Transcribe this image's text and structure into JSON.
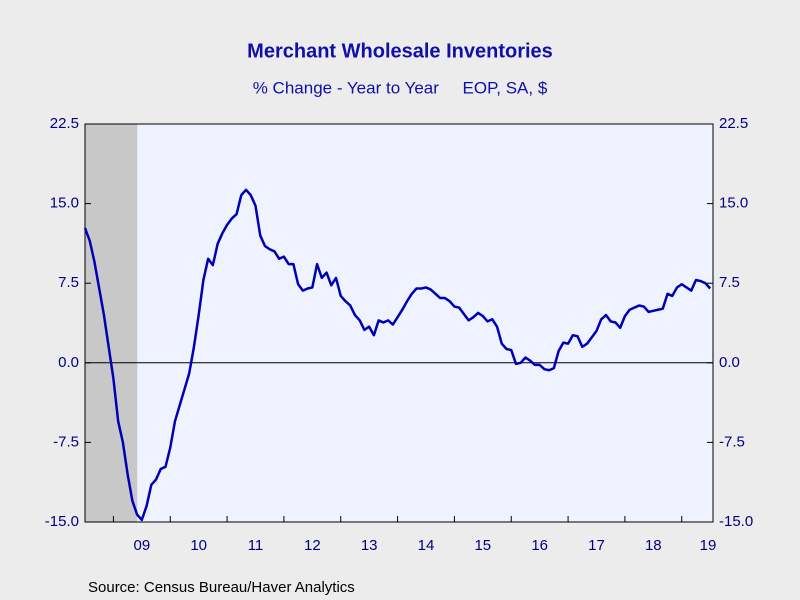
{
  "chart_data": {
    "type": "line",
    "title": "Merchant Wholesale Inventories",
    "subtitle": "% Change - Year to Year     EOP, SA, $",
    "source": "Source:  Census Bureau/Haver Analytics",
    "x": [
      2008.5,
      2008.5833,
      2008.6667,
      2008.75,
      2008.8333,
      2008.9167,
      2009,
      2009.0833,
      2009.1667,
      2009.25,
      2009.3333,
      2009.4167,
      2009.5,
      2009.5833,
      2009.6667,
      2009.75,
      2009.8333,
      2009.9167,
      2010,
      2010.0833,
      2010.1667,
      2010.25,
      2010.3333,
      2010.4167,
      2010.5,
      2010.5833,
      2010.6667,
      2010.75,
      2010.8333,
      2010.9167,
      2011,
      2011.0833,
      2011.1667,
      2011.25,
      2011.3333,
      2011.4167,
      2011.5,
      2011.5833,
      2011.6667,
      2011.75,
      2011.8333,
      2011.9167,
      2012,
      2012.0833,
      2012.1667,
      2012.25,
      2012.3333,
      2012.4167,
      2012.5,
      2012.5833,
      2012.6667,
      2012.75,
      2012.8333,
      2012.9167,
      2013,
      2013.0833,
      2013.1667,
      2013.25,
      2013.3333,
      2013.4167,
      2013.5,
      2013.5833,
      2013.6667,
      2013.75,
      2013.8333,
      2013.9167,
      2014,
      2014.0833,
      2014.1667,
      2014.25,
      2014.3333,
      2014.4167,
      2014.5,
      2014.5833,
      2014.6667,
      2014.75,
      2014.8333,
      2014.9167,
      2015,
      2015.0833,
      2015.1667,
      2015.25,
      2015.3333,
      2015.4167,
      2015.5,
      2015.5833,
      2015.6667,
      2015.75,
      2015.8333,
      2015.9167,
      2016,
      2016.0833,
      2016.1667,
      2016.25,
      2016.3333,
      2016.4167,
      2016.5,
      2016.5833,
      2016.6667,
      2016.75,
      2016.8333,
      2016.9167,
      2017,
      2017.0833,
      2017.1667,
      2017.25,
      2017.3333,
      2017.4167,
      2017.5,
      2017.5833,
      2017.6667,
      2017.75,
      2017.8333,
      2017.9167,
      2018,
      2018.0833,
      2018.1667,
      2018.25,
      2018.3333,
      2018.4167,
      2018.5,
      2018.5833,
      2018.6667,
      2018.75,
      2018.8333,
      2018.9167,
      2019,
      2019.0833,
      2019.1667,
      2019.25,
      2019.3333,
      2019.4167,
      2019.5
    ],
    "series": [
      {
        "color": "#0000b4",
        "values": [
          12.7,
          11.5,
          9.5,
          7,
          4.5,
          1.5,
          -1.5,
          -5.5,
          -7.5,
          -10.5,
          -13,
          -14.3,
          -14.8,
          -13.5,
          -11.5,
          -11,
          -10,
          -9.8,
          -8,
          -5.5,
          -4,
          -2.5,
          -1,
          1.5,
          4.5,
          7.8,
          9.8,
          9.2,
          11.2,
          12.2,
          13,
          13.6,
          14,
          15.8,
          16.3,
          15.8,
          14.8,
          12,
          11,
          10.7,
          10.5,
          9.8,
          10,
          9.3,
          9.3,
          7.4,
          6.8,
          7,
          7.1,
          9.3,
          8,
          8.5,
          7.3,
          8,
          6.3,
          5.8,
          5.4,
          4.5,
          4,
          3.1,
          3.4,
          2.6,
          4,
          3.8,
          4,
          3.6,
          4.3,
          5,
          5.8,
          6.5,
          7,
          7,
          7.1,
          6.9,
          6.5,
          6.1,
          6.1,
          5.8,
          5.3,
          5.2,
          4.6,
          4,
          4.3,
          4.7,
          4.4,
          3.9,
          4.1,
          3.4,
          1.8,
          1.3,
          1.2,
          -0.1,
          0,
          0.5,
          0.2,
          -0.2,
          -0.2,
          -0.6,
          -0.7,
          -0.5,
          1.1,
          1.9,
          1.8,
          2.6,
          2.5,
          1.5,
          1.8,
          2.4,
          3,
          4.1,
          4.5,
          3.9,
          3.8,
          3.3,
          4.4,
          5,
          5.2,
          5.4,
          5.3,
          4.8,
          4.9,
          5,
          5.1,
          6.5,
          6.3,
          7.1,
          7.4,
          7.1,
          6.8,
          7.8,
          7.7,
          7.5,
          7
        ]
      }
    ],
    "recession": [
      2008.5,
      2009.42
    ],
    "xlim": [
      2008.5,
      2019.55
    ],
    "xticks": [
      {
        "value": 2009,
        "label": "09"
      },
      {
        "value": 2010,
        "label": "10"
      },
      {
        "value": 2011,
        "label": "11"
      },
      {
        "value": 2012,
        "label": "12"
      },
      {
        "value": 2013,
        "label": "13"
      },
      {
        "value": 2014,
        "label": "14"
      },
      {
        "value": 2015,
        "label": "15"
      },
      {
        "value": 2016,
        "label": "16"
      },
      {
        "value": 2017,
        "label": "17"
      },
      {
        "value": 2018,
        "label": "18"
      },
      {
        "value": 2019,
        "label": "19"
      }
    ],
    "ylim": [
      -15,
      22.5
    ],
    "yticks": [
      {
        "value": -15,
        "label": "-15.0"
      },
      -7.5,
      {
        "value": 0,
        "label": "0.0"
      },
      7.5,
      {
        "value": 15,
        "label": "15.0"
      },
      22.5
    ],
    "y2lim": [
      -15,
      22.5
    ],
    "y2ticks": [
      {
        "value": -15,
        "label": "-15.0"
      },
      -7.5,
      {
        "value": 0,
        "label": "0.0"
      },
      7.5,
      {
        "value": 15,
        "label": "15.0"
      },
      22.5
    ]
  }
}
